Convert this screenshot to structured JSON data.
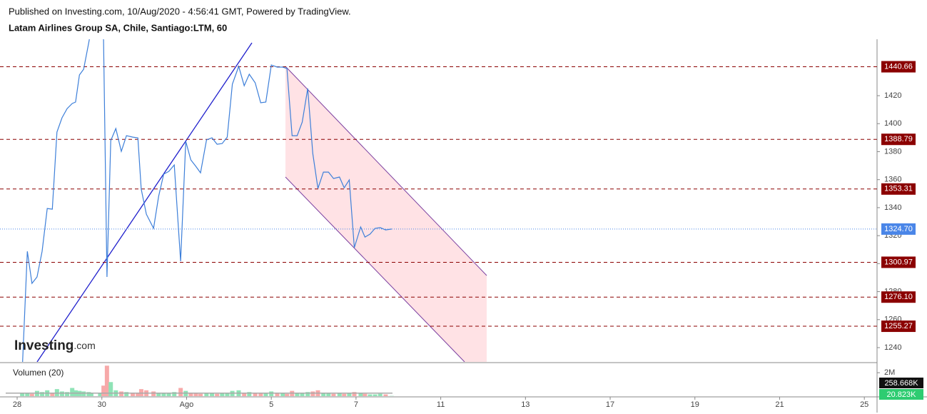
{
  "chart_data": {
    "type": "line",
    "subtitle": "Published on Investing.com, 10/Aug/2020 - 4:56:41 GMT, Powered by TradingView.",
    "title": "Latam Airlines Group SA, Chile, Santiago:LTM, 60",
    "logo": [
      "Investing",
      ".com"
    ],
    "series": [
      {
        "color": "#3d7fd9",
        "x": [
          0.12,
          0.24,
          0.35,
          0.47,
          0.59,
          0.71,
          0.83,
          0.94,
          1.06,
          1.18,
          1.3,
          1.38,
          1.47,
          1.57,
          1.69,
          1.75,
          1.96,
          2.04,
          2.12,
          2.21,
          2.33,
          2.46,
          2.58,
          2.73,
          2.85,
          2.93,
          3.05,
          3.22,
          3.34,
          3.46,
          3.58,
          3.71,
          3.86,
          3.98,
          4.1,
          4.22,
          4.33,
          4.47,
          4.6,
          4.72,
          4.84,
          4.96,
          5.08,
          5.23,
          5.36,
          5.48,
          5.62,
          5.75,
          5.87,
          6.0,
          6.14,
          6.27,
          6.37,
          6.49,
          6.61,
          6.73,
          6.86,
          6.98,
          7.1,
          7.23,
          7.35,
          7.47,
          7.61,
          7.72,
          7.84,
          7.96,
          8.11,
          8.21,
          8.33,
          8.45,
          8.57,
          8.7,
          8.84
        ],
        "values": [
          1223.2,
          1308.8,
          1285.9,
          1290.5,
          1308.8,
          1339.4,
          1338.9,
          1394,
          1404.2,
          1410.8,
          1414.4,
          1415.4,
          1434.8,
          1438.9,
          1457.7,
          1467.9,
          1467.9,
          1460,
          1290.5,
          1387.9,
          1396.5,
          1380.2,
          1391.4,
          1390.4,
          1389.9,
          1353.2,
          1335.3,
          1325.2,
          1348.1,
          1363.9,
          1365.9,
          1370.5,
          1301.7,
          1387.4,
          1374.1,
          1369.5,
          1364.9,
          1388.4,
          1389.9,
          1385.3,
          1385.8,
          1390.4,
          1428.2,
          1440.9,
          1427.1,
          1435.3,
          1429.2,
          1414.9,
          1415.4,
          1441.9,
          1440.4,
          1440.4,
          1439.4,
          1391.4,
          1391.4,
          1401.1,
          1425.1,
          1378.7,
          1353.7,
          1365.4,
          1365.4,
          1360.8,
          1361.9,
          1354.2,
          1359.8,
          1311.4,
          1326.2,
          1319,
          1321.1,
          1325.2,
          1325.7,
          1324.1,
          1324.7
        ]
      }
    ],
    "levels": [
      1440.66,
      1388.79,
      1353.31,
      1300.97,
      {
        "value": 1276.1,
        "label": "1276.10"
      },
      1255.27
    ],
    "level_color": "#8b0000",
    "last_price": {
      "value": 1324.7,
      "label": "1324.70"
    },
    "last_price_color": "#4a86e8",
    "xlim": [
      -0.27,
      20.3
    ],
    "xticks": [
      {
        "value": 0,
        "label": "28"
      },
      {
        "value": 2,
        "label": "30"
      },
      {
        "value": 4,
        "label": "Ago"
      },
      {
        "value": 6,
        "label": "5"
      },
      {
        "value": 8,
        "label": "7"
      },
      {
        "value": 10,
        "label": "11"
      },
      {
        "value": 12,
        "label": "13"
      },
      {
        "value": 14,
        "label": "17"
      },
      {
        "value": 16,
        "label": "19"
      },
      {
        "value": 18,
        "label": "21"
      },
      {
        "value": 20,
        "label": "25"
      }
    ],
    "ylim": [
      1229.8,
      1460.3
    ],
    "yticks": [
      1240,
      1260,
      1280,
      1300,
      1320,
      1340,
      1360,
      1380,
      1400,
      1420
    ],
    "volume": {
      "title": "Volumen (20)",
      "up_color": "#8fe3b6",
      "down_color": "#f7a9a9",
      "values": [
        300000,
        250000,
        200000,
        450000,
        350000,
        500000,
        300000,
        600000,
        400000,
        350000,
        700000,
        500000,
        450000,
        400000,
        350000,
        300000,
        300000,
        900000,
        2600000,
        1200000,
        500000,
        400000,
        350000,
        300000,
        250000,
        600000,
        500000,
        400000,
        300000,
        250000,
        300000,
        350000,
        700000,
        450000,
        300000,
        250000,
        200000,
        300000,
        250000,
        200000,
        250000,
        300000,
        450000,
        500000,
        300000,
        350000,
        250000,
        300000,
        250000,
        400000,
        300000,
        250000,
        200000,
        450000,
        300000,
        250000,
        350000,
        400000,
        500000,
        300000,
        250000,
        200000,
        250000,
        200000,
        250000,
        350000,
        300000,
        200000,
        150000,
        150000,
        200000,
        150000,
        20823
      ],
      "ylim": [
        0,
        2800000
      ],
      "yticks": [
        {
          "value": 2000000,
          "label": "2M"
        }
      ],
      "ma_label": {
        "value": 258668,
        "label": "258.668K"
      },
      "last_label": {
        "value": 20823,
        "label": "20.823K"
      }
    }
  }
}
